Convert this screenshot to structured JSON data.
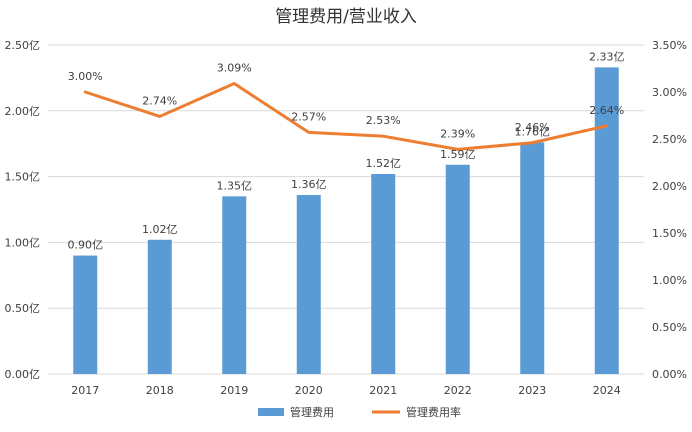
{
  "chart_data": {
    "type": "bar+line",
    "title": "管理费用/营业收入",
    "categories": [
      "2017",
      "2018",
      "2019",
      "2020",
      "2021",
      "2022",
      "2023",
      "2024"
    ],
    "series": [
      {
        "name": "管理费用",
        "type": "bar",
        "axis": "left",
        "values": [
          0.9,
          1.02,
          1.35,
          1.36,
          1.52,
          1.59,
          1.76,
          2.33
        ],
        "labels": [
          "0.90亿",
          "1.02亿",
          "1.35亿",
          "1.36亿",
          "1.52亿",
          "1.59亿",
          "1.76亿",
          "2.33亿"
        ],
        "color": "#5B9BD5"
      },
      {
        "name": "管理费用率",
        "type": "line",
        "axis": "right",
        "values": [
          3.0,
          2.74,
          3.09,
          2.57,
          2.53,
          2.39,
          2.46,
          2.64
        ],
        "labels": [
          "3.00%",
          "2.74%",
          "3.09%",
          "2.57%",
          "2.53%",
          "2.39%",
          "2.46%",
          "2.64%"
        ],
        "color": "#ED7D31"
      }
    ],
    "y_left": {
      "range": [
        0,
        2.5
      ],
      "ticks": [
        0,
        0.5,
        1.0,
        1.5,
        2.0,
        2.5
      ],
      "tick_labels": [
        "0.00亿",
        "0.50亿",
        "1.00亿",
        "1.50亿",
        "2.00亿",
        "2.50亿"
      ]
    },
    "y_right": {
      "range": [
        0,
        3.5
      ],
      "ticks": [
        0,
        0.5,
        1.0,
        1.5,
        2.0,
        2.5,
        3.0,
        3.5
      ],
      "tick_labels": [
        "0.00%",
        "0.50%",
        "1.00%",
        "1.50%",
        "2.00%",
        "2.50%",
        "3.00%",
        "3.50%"
      ]
    },
    "grid": true,
    "legend_position": "bottom"
  }
}
